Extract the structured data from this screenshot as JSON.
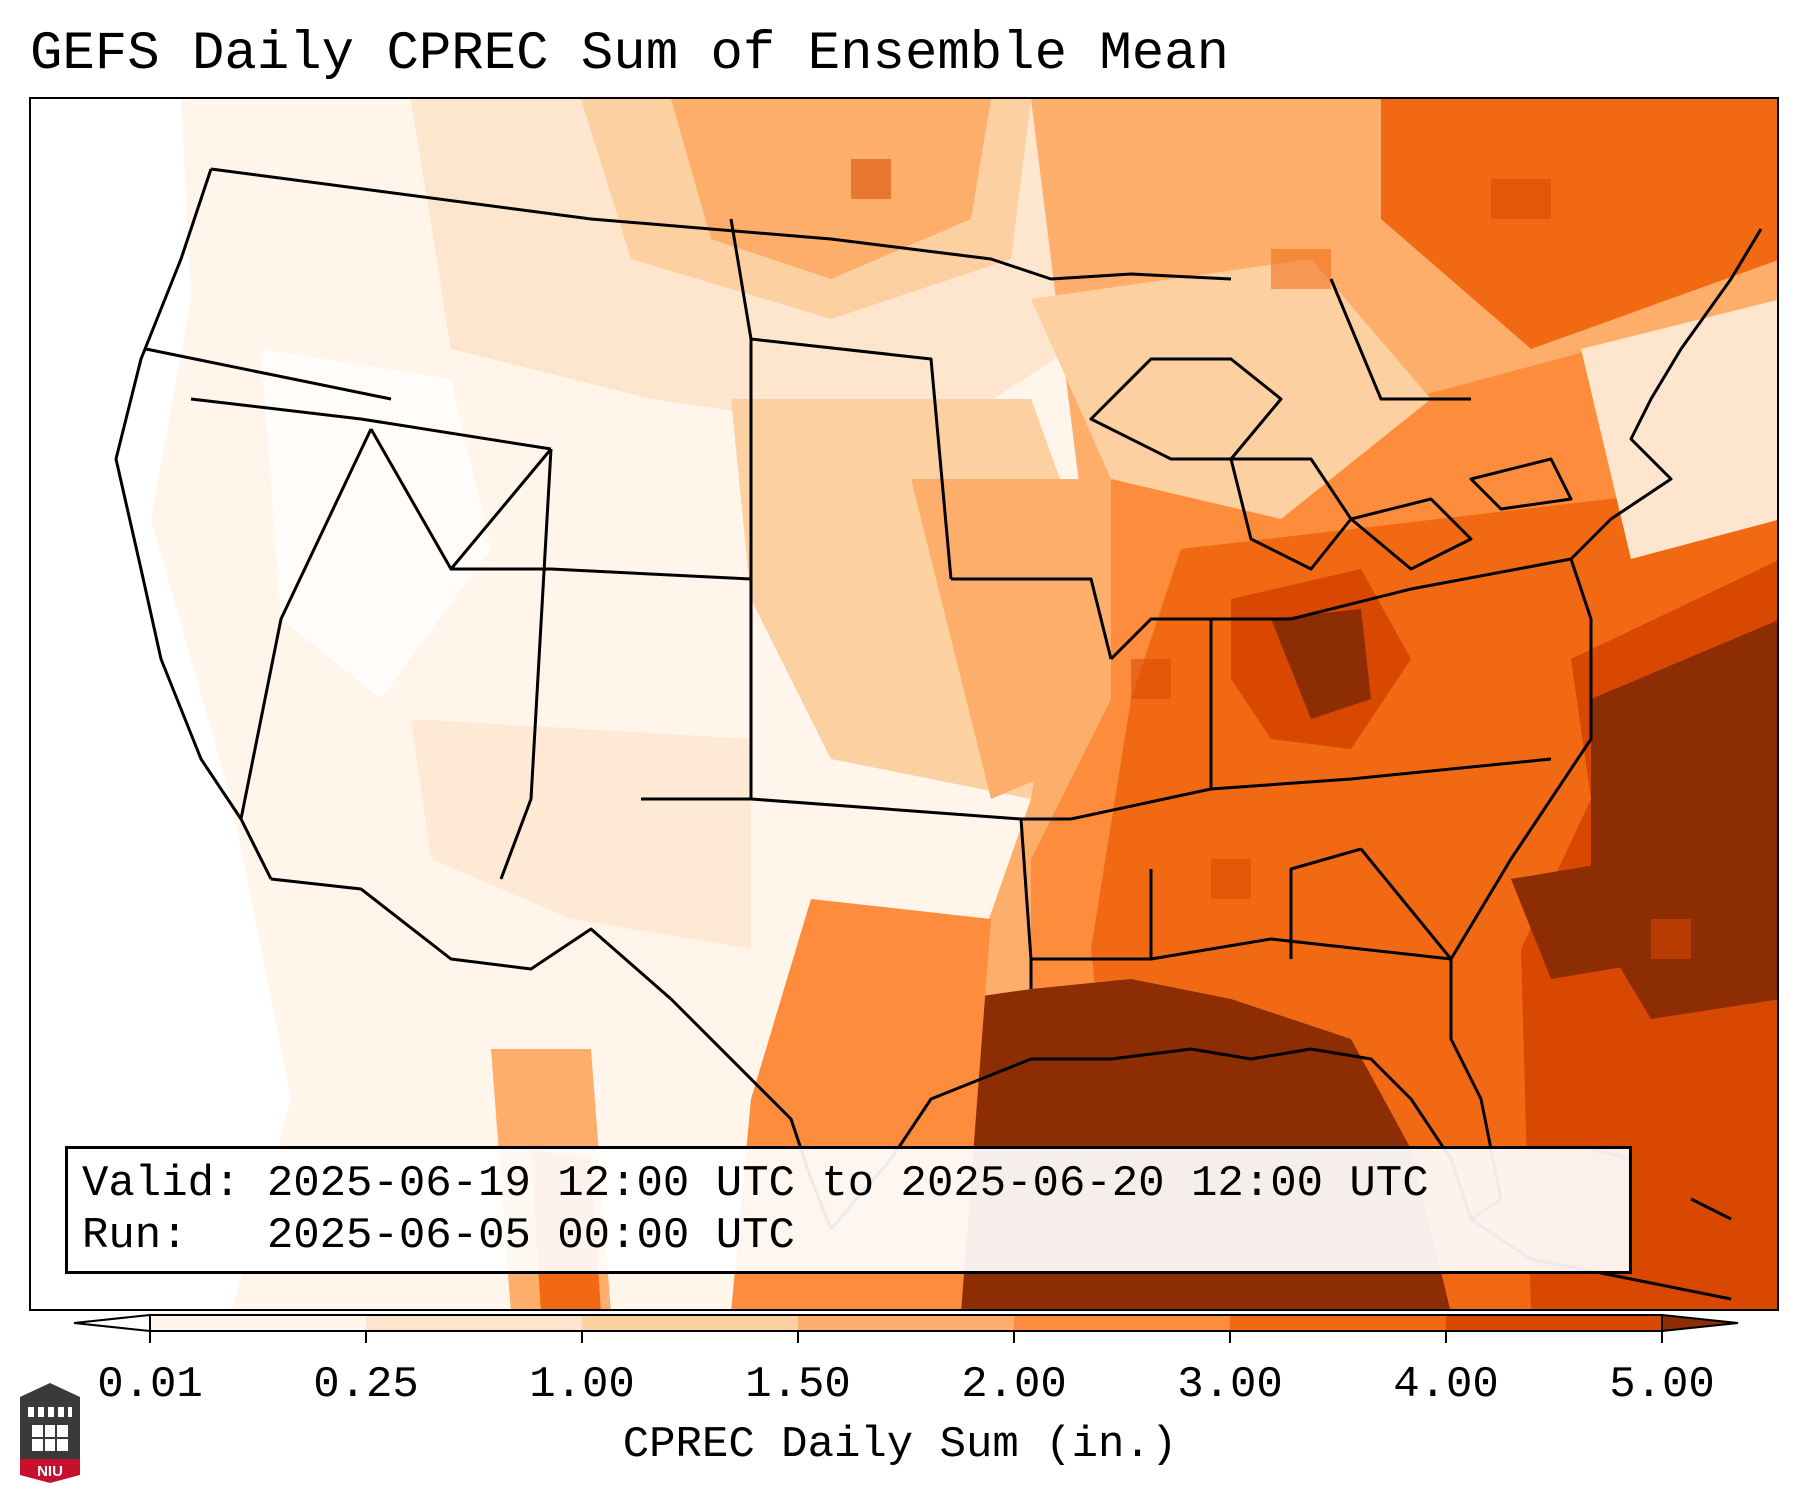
{
  "title": "GEFS Daily CPREC Sum of Ensemble Mean",
  "valid_line": "Valid: 2025-06-19 12:00 UTC to 2025-06-20 12:00 UTC",
  "run_line": "Run:   2025-06-05 00:00 UTC",
  "colorbar": {
    "label": "CPREC Daily Sum (in.)",
    "ticks": [
      "0.01",
      "0.25",
      "1.00",
      "1.50",
      "2.00",
      "3.00",
      "4.00",
      "5.00"
    ],
    "colors": [
      "#ffffff",
      "#fff5eb",
      "#fee6ce",
      "#fdd0a2",
      "#fdae6b",
      "#fd8d3c",
      "#f16913",
      "#d94801",
      "#8c2d04"
    ],
    "extend": "both"
  },
  "logo": {
    "text": "NIU",
    "icon": "university-tower-icon"
  },
  "map": {
    "projection": "Lambert conformal",
    "region": "CONUS"
  }
}
